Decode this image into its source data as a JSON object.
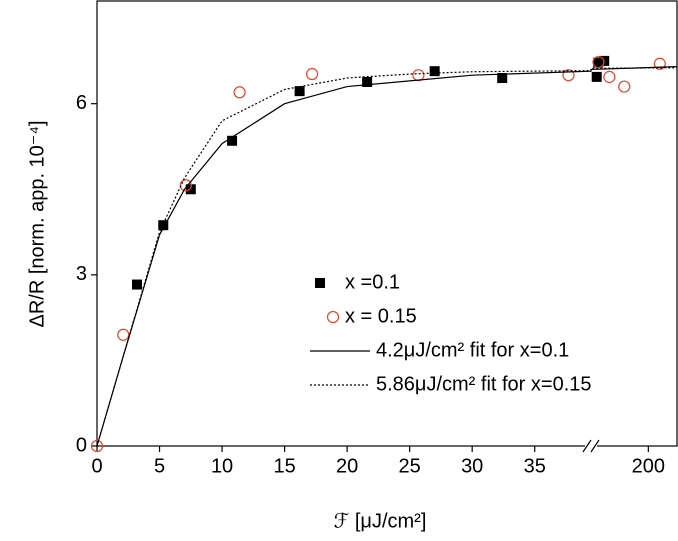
{
  "chart_data": {
    "type": "scatter",
    "xlabel": "ℱ [μJ/cm²]",
    "ylabel": "ΔR/R [norm. app. 10⁻⁴]",
    "xlim": [
      0,
      210
    ],
    "xbreak": [
      39.5,
      180
    ],
    "xticks": [
      0,
      5,
      10,
      15,
      20,
      25,
      30,
      35,
      200
    ],
    "ylim": [
      0,
      7.8
    ],
    "yticks": [
      0,
      3,
      6
    ],
    "legend": "lower right",
    "series": [
      {
        "name": "x =0.1",
        "mode": "markers",
        "marker": "square",
        "color": "#000000",
        "x": [
          3.2,
          5.3,
          7.5,
          10.8,
          16.2,
          21.6,
          27,
          32.4,
          182,
          182.5,
          184.6
        ],
        "values": [
          2.83,
          3.87,
          4.5,
          5.35,
          6.22,
          6.38,
          6.57,
          6.45,
          6.47,
          6.72,
          6.75
        ]
      },
      {
        "name": "x = 0.15",
        "mode": "markers",
        "marker": "circle",
        "color": "#e8432a",
        "x": [
          0,
          2.1,
          7.1,
          11.4,
          17.2,
          25.7,
          37.7,
          182.6,
          186.4,
          191.6,
          204
        ],
        "values": [
          0,
          1.95,
          4.57,
          6.2,
          6.52,
          6.5,
          6.5,
          6.73,
          6.47,
          6.3,
          6.7
        ]
      },
      {
        "name": "4.2μJ/cm² fit for x=0.1",
        "mode": "line",
        "dash": "solid",
        "color": "#000000",
        "x": [
          0,
          2,
          5,
          7,
          10,
          15,
          20,
          25,
          30,
          39.5,
          180,
          210
        ],
        "values": [
          0,
          1.5,
          3.7,
          4.5,
          5.3,
          6.0,
          6.3,
          6.4,
          6.5,
          6.57,
          6.6,
          6.65
        ]
      },
      {
        "name": "5.86μJ/cm² fit for x=0.15",
        "mode": "line",
        "dash": "dotted",
        "color": "#000000",
        "x": [
          0,
          2,
          5,
          7,
          10,
          15,
          20,
          25,
          30,
          39.5,
          180,
          210
        ],
        "values": [
          0,
          1.5,
          3.75,
          4.7,
          5.7,
          6.25,
          6.45,
          6.52,
          6.56,
          6.58,
          6.62,
          6.63
        ]
      }
    ]
  }
}
